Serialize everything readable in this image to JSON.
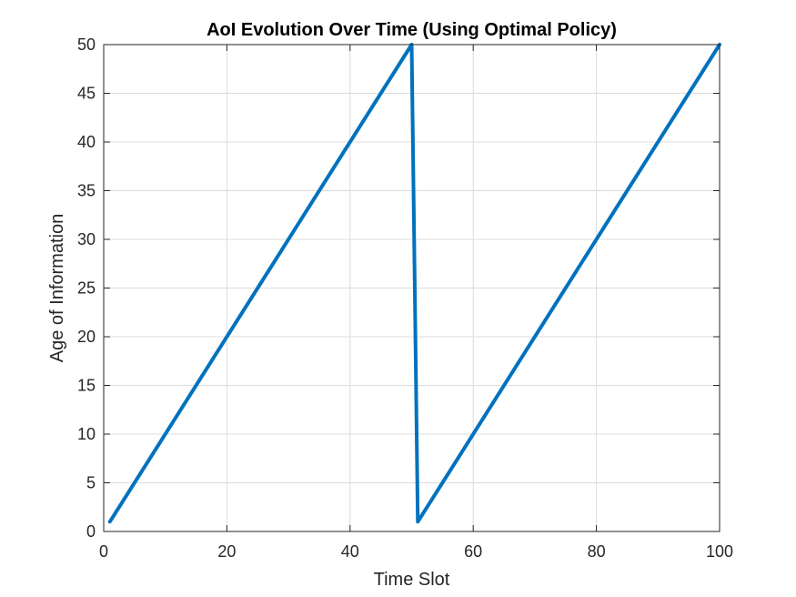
{
  "chart_data": {
    "type": "line",
    "title": "AoI Evolution Over Time (Using Optimal Policy)",
    "xlabel": "Time Slot",
    "ylabel": "Age of Information",
    "xlim": [
      0,
      100
    ],
    "ylim": [
      0,
      50
    ],
    "xticks": [
      0,
      20,
      40,
      60,
      80,
      100
    ],
    "yticks": [
      0,
      5,
      10,
      15,
      20,
      25,
      30,
      35,
      40,
      45,
      50
    ],
    "grid": true,
    "colors": {
      "line": "#0072BD",
      "grid": "#dcdcdc",
      "axis": "#262626"
    },
    "series": [
      {
        "x": [
          1,
          50,
          51,
          100
        ],
        "y": [
          1,
          50,
          1,
          50
        ]
      }
    ]
  }
}
